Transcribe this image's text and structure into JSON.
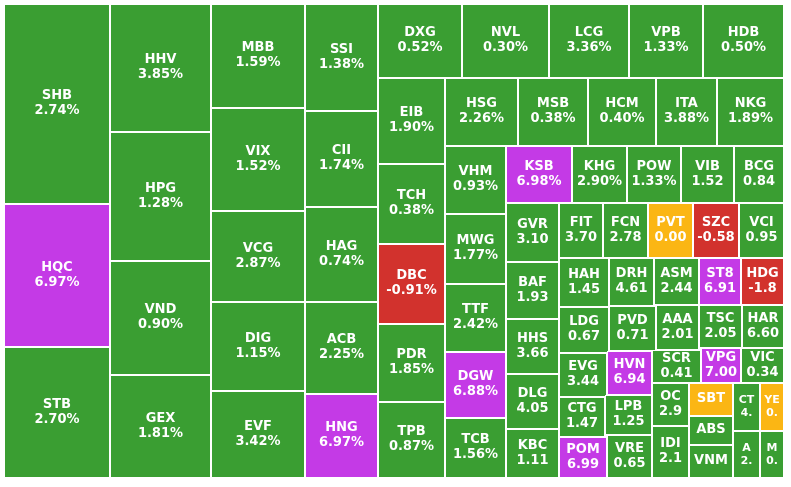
{
  "colors": {
    "up": "#3a9e32",
    "down": "#d2322d",
    "ceiling": "#c43ae6",
    "reference": "#fbb614"
  },
  "chart_data": {
    "type": "treemap",
    "tiles": [
      {
        "symbol": "SHB",
        "change": "2.74%",
        "status": "up"
      },
      {
        "symbol": "HQC",
        "change": "6.97%",
        "status": "ceiling"
      },
      {
        "symbol": "STB",
        "change": "2.70%",
        "status": "up"
      },
      {
        "symbol": "HHV",
        "change": "3.85%",
        "status": "up"
      },
      {
        "symbol": "HPG",
        "change": "1.28%",
        "status": "up"
      },
      {
        "symbol": "VND",
        "change": "0.90%",
        "status": "up"
      },
      {
        "symbol": "GEX",
        "change": "1.81%",
        "status": "up"
      },
      {
        "symbol": "MBB",
        "change": "1.59%",
        "status": "up"
      },
      {
        "symbol": "VIX",
        "change": "1.52%",
        "status": "up"
      },
      {
        "symbol": "VCG",
        "change": "2.87%",
        "status": "up"
      },
      {
        "symbol": "DIG",
        "change": "1.15%",
        "status": "up"
      },
      {
        "symbol": "EVF",
        "change": "3.42%",
        "status": "up"
      },
      {
        "symbol": "SSI",
        "change": "1.38%",
        "status": "up"
      },
      {
        "symbol": "CII",
        "change": "1.74%",
        "status": "up"
      },
      {
        "symbol": "HAG",
        "change": "0.74%",
        "status": "up"
      },
      {
        "symbol": "ACB",
        "change": "2.25%",
        "status": "up"
      },
      {
        "symbol": "HNG",
        "change": "6.97%",
        "status": "ceiling"
      },
      {
        "symbol": "DXG",
        "change": "0.52%",
        "status": "up"
      },
      {
        "symbol": "NVL",
        "change": "0.30%",
        "status": "up"
      },
      {
        "symbol": "LCG",
        "change": "3.36%",
        "status": "up"
      },
      {
        "symbol": "VPB",
        "change": "1.33%",
        "status": "up"
      },
      {
        "symbol": "HDB",
        "change": "0.50%",
        "status": "up"
      },
      {
        "symbol": "EIB",
        "change": "1.90%",
        "status": "up"
      },
      {
        "symbol": "TCH",
        "change": "0.38%",
        "status": "up"
      },
      {
        "symbol": "DBC",
        "change": "-0.91%",
        "status": "down"
      },
      {
        "symbol": "PDR",
        "change": "1.85%",
        "status": "up"
      },
      {
        "symbol": "TPB",
        "change": "0.87%",
        "status": "up"
      },
      {
        "symbol": "HSG",
        "change": "2.26%",
        "status": "up"
      },
      {
        "symbol": "MSB",
        "change": "0.38%",
        "status": "up"
      },
      {
        "symbol": "HCM",
        "change": "0.40%",
        "status": "up"
      },
      {
        "symbol": "ITA",
        "change": "3.88%",
        "status": "up"
      },
      {
        "symbol": "NKG",
        "change": "1.89%",
        "status": "up"
      },
      {
        "symbol": "VHM",
        "change": "0.93%",
        "status": "up"
      },
      {
        "symbol": "MWG",
        "change": "1.77%",
        "status": "up"
      },
      {
        "symbol": "TTF",
        "change": "2.42%",
        "status": "up"
      },
      {
        "symbol": "DGW",
        "change": "6.88%",
        "status": "ceiling"
      },
      {
        "symbol": "TCB",
        "change": "1.56%",
        "status": "up"
      },
      {
        "symbol": "KSB",
        "change": "6.98%",
        "status": "ceiling"
      },
      {
        "symbol": "KHG",
        "change": "2.90%",
        "status": "up"
      },
      {
        "symbol": "POW",
        "change": "1.33%",
        "status": "up"
      },
      {
        "symbol": "VIB",
        "change": "1.52",
        "status": "up"
      },
      {
        "symbol": "BCG",
        "change": "0.84",
        "status": "up"
      },
      {
        "symbol": "GVR",
        "change": "3.10",
        "status": "up"
      },
      {
        "symbol": "BAF",
        "change": "1.93",
        "status": "up"
      },
      {
        "symbol": "HHS",
        "change": "3.66",
        "status": "up"
      },
      {
        "symbol": "DLG",
        "change": "4.05",
        "status": "up"
      },
      {
        "symbol": "KBC",
        "change": "1.11",
        "status": "up"
      },
      {
        "symbol": "FIT",
        "change": "3.70",
        "status": "up"
      },
      {
        "symbol": "FCN",
        "change": "2.78",
        "status": "up"
      },
      {
        "symbol": "PVT",
        "change": "0.00",
        "status": "reference"
      },
      {
        "symbol": "SZC",
        "change": "-0.58",
        "status": "down"
      },
      {
        "symbol": "VCI",
        "change": "0.95",
        "status": "up"
      },
      {
        "symbol": "HAH",
        "change": "1.45",
        "status": "up"
      },
      {
        "symbol": "DRH",
        "change": "4.61",
        "status": "up"
      },
      {
        "symbol": "ASM",
        "change": "2.44",
        "status": "up"
      },
      {
        "symbol": "ST8",
        "change": "6.91",
        "status": "ceiling"
      },
      {
        "symbol": "HDG",
        "change": "-1.8",
        "status": "down"
      },
      {
        "symbol": "LDG",
        "change": "0.67",
        "status": "up"
      },
      {
        "symbol": "PVD",
        "change": "0.71",
        "status": "up"
      },
      {
        "symbol": "AAA",
        "change": "2.01",
        "status": "up"
      },
      {
        "symbol": "TSC",
        "change": "2.05",
        "status": "up"
      },
      {
        "symbol": "HAR",
        "change": "6.60",
        "status": "up"
      },
      {
        "symbol": "EVG",
        "change": "3.44",
        "status": "up"
      },
      {
        "symbol": "HVN",
        "change": "6.94",
        "status": "ceiling"
      },
      {
        "symbol": "SCR",
        "change": "0.41",
        "status": "up"
      },
      {
        "symbol": "VPG",
        "change": "7.00",
        "status": "ceiling"
      },
      {
        "symbol": "VIC",
        "change": "0.34",
        "status": "up"
      },
      {
        "symbol": "CTG",
        "change": "1.47",
        "status": "up"
      },
      {
        "symbol": "LPB",
        "change": "1.25",
        "status": "up"
      },
      {
        "symbol": "OC",
        "change": "2.9",
        "status": "up"
      },
      {
        "symbol": "SBT",
        "change": "",
        "status": "reference"
      },
      {
        "symbol": "CT",
        "change": "4.",
        "status": "up"
      },
      {
        "symbol": "YE",
        "change": "0.",
        "status": "reference"
      },
      {
        "symbol": "ABS",
        "change": "",
        "status": "up"
      },
      {
        "symbol": "POM",
        "change": "6.99",
        "status": "ceiling"
      },
      {
        "symbol": "VRE",
        "change": "0.65",
        "status": "up"
      },
      {
        "symbol": "IDI",
        "change": "2.1",
        "status": "up"
      },
      {
        "symbol": "VNM",
        "change": "",
        "status": "up"
      },
      {
        "symbol": "A",
        "change": "2.",
        "status": "up"
      },
      {
        "symbol": "M",
        "change": "0.",
        "status": "up"
      }
    ]
  }
}
